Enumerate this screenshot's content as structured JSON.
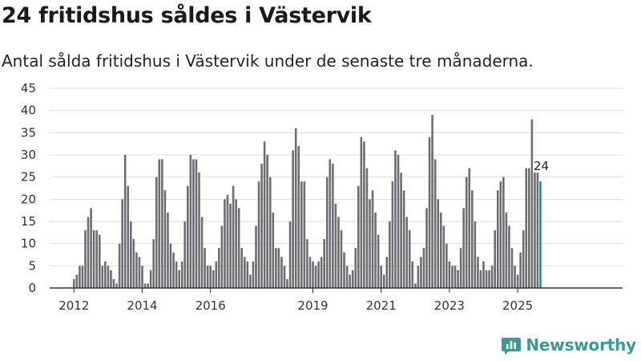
{
  "title": "24 fritidshus såldes i Västervik",
  "subtitle": "Antal sålda fritidshus i Västervik under de senaste tre månaderna.",
  "colors": {
    "bar": "#6e6d72",
    "highlight": "#15958f",
    "grid": "#dddddd",
    "axis": "#333333",
    "brand": "#3a9a96"
  },
  "logo": {
    "text": "Newsworthy",
    "icon": "bar-chart-logo-icon"
  },
  "chart_data": {
    "type": "bar",
    "x_start": "2012-01",
    "x_step": "month",
    "xticks": [
      "2012",
      "2014",
      "2016",
      "2019",
      "2021",
      "2023",
      "2025"
    ],
    "yticks": [
      0,
      5,
      10,
      15,
      20,
      25,
      30,
      35,
      40,
      45
    ],
    "ylim": [
      0,
      45
    ],
    "grid": true,
    "highlight": {
      "x": "2025-09",
      "label": "24"
    },
    "values": [
      2,
      3,
      5,
      5,
      13,
      16,
      18,
      13,
      13,
      12,
      5,
      6,
      5,
      4,
      2,
      1,
      10,
      20,
      30,
      23,
      15,
      11,
      8,
      7,
      5,
      1,
      1,
      4,
      11,
      25,
      29,
      29,
      22,
      17,
      10,
      8,
      6,
      4,
      6,
      15,
      23,
      30,
      29,
      29,
      26,
      16,
      9,
      5,
      5,
      4,
      6,
      9,
      14,
      20,
      21,
      19,
      23,
      20,
      18,
      9,
      7,
      6,
      3,
      6,
      14,
      24,
      28,
      33,
      30,
      25,
      17,
      9,
      9,
      7,
      5,
      2,
      15,
      31,
      36,
      32,
      24,
      24,
      11,
      7,
      6,
      5,
      6,
      7,
      11,
      25,
      29,
      28,
      19,
      16,
      13,
      8,
      5,
      3,
      4,
      9,
      23,
      34,
      33,
      27,
      20,
      22,
      17,
      12,
      5,
      3,
      7,
      15,
      24,
      31,
      30,
      26,
      22,
      16,
      13,
      6,
      1,
      5,
      7,
      9,
      18,
      34,
      39,
      29,
      20,
      17,
      14,
      10,
      6,
      5,
      5,
      4,
      9,
      18,
      25,
      27,
      22,
      15,
      7,
      4,
      6,
      4,
      4,
      5,
      13,
      22,
      24,
      25,
      17,
      14,
      9,
      5,
      3,
      8,
      13,
      27,
      27,
      38,
      26,
      26,
      24
    ]
  }
}
